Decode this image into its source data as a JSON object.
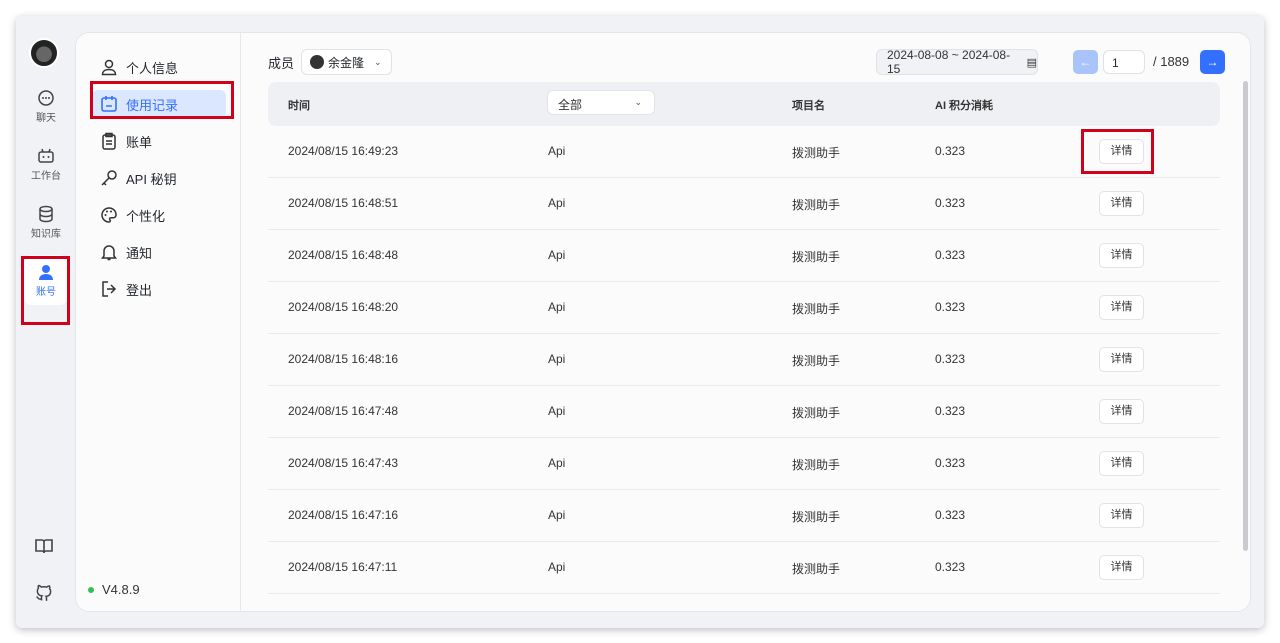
{
  "rail": {
    "items": [
      {
        "label": "聊天",
        "icon": "chat-icon"
      },
      {
        "label": "工作台",
        "icon": "robot-icon"
      },
      {
        "label": "知识库",
        "icon": "database-icon"
      },
      {
        "label": "账号",
        "icon": "user-icon",
        "active": true
      }
    ],
    "bottom_icons": [
      "book-icon",
      "github-icon"
    ]
  },
  "sidebar": {
    "items": [
      {
        "label": "个人信息",
        "icon": "user-icon"
      },
      {
        "label": "使用记录",
        "icon": "calendar-icon",
        "active": true
      },
      {
        "label": "账单",
        "icon": "clipboard-icon"
      },
      {
        "label": "API 秘钥",
        "icon": "key-icon"
      },
      {
        "label": "个性化",
        "icon": "palette-icon"
      },
      {
        "label": "通知",
        "icon": "bell-icon"
      },
      {
        "label": "登出",
        "icon": "logout-icon"
      }
    ],
    "version": "V4.8.9"
  },
  "toolbar": {
    "member_label": "成员",
    "member": "余金隆",
    "date_range": "2024-08-08 ~ 2024-08-15",
    "page": "1",
    "total_pages": "/ 1889"
  },
  "table": {
    "headers": {
      "time": "时间",
      "source_filter": "全部",
      "app": "项目名",
      "points": "AI 积分消耗"
    },
    "detail_label": "详情",
    "rows": [
      {
        "time": "2024/08/15 16:49:23",
        "source": "Api",
        "app": "拨测助手",
        "points": "0.323"
      },
      {
        "time": "2024/08/15 16:48:51",
        "source": "Api",
        "app": "拨测助手",
        "points": "0.323"
      },
      {
        "time": "2024/08/15 16:48:48",
        "source": "Api",
        "app": "拨测助手",
        "points": "0.323"
      },
      {
        "time": "2024/08/15 16:48:20",
        "source": "Api",
        "app": "拨测助手",
        "points": "0.323"
      },
      {
        "time": "2024/08/15 16:48:16",
        "source": "Api",
        "app": "拨测助手",
        "points": "0.323"
      },
      {
        "time": "2024/08/15 16:47:48",
        "source": "Api",
        "app": "拨测助手",
        "points": "0.323"
      },
      {
        "time": "2024/08/15 16:47:43",
        "source": "Api",
        "app": "拨测助手",
        "points": "0.323"
      },
      {
        "time": "2024/08/15 16:47:16",
        "source": "Api",
        "app": "拨测助手",
        "points": "0.323"
      },
      {
        "time": "2024/08/15 16:47:11",
        "source": "Api",
        "app": "拨测助手",
        "points": "0.323"
      }
    ]
  },
  "colors": {
    "accent": "#3370ff",
    "highlight": "#d0021b"
  }
}
